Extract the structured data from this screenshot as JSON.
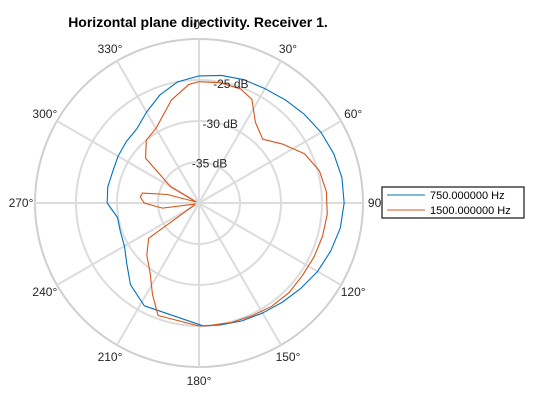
{
  "chart_data": {
    "type": "polar-line",
    "title": "Horizontal plane directivity. Receiver 1.",
    "theta_zero": "top",
    "theta_direction": "clockwise",
    "theta_ticks": [
      {
        "angle": 0,
        "label": "0°"
      },
      {
        "angle": 30,
        "label": "30°"
      },
      {
        "angle": 60,
        "label": "60°"
      },
      {
        "angle": 90,
        "label": "90°"
      },
      {
        "angle": 120,
        "label": "120°"
      },
      {
        "angle": 150,
        "label": "150°"
      },
      {
        "angle": 180,
        "label": "180°"
      },
      {
        "angle": 210,
        "label": "210°"
      },
      {
        "angle": 240,
        "label": "240°"
      },
      {
        "angle": 270,
        "label": "270°"
      },
      {
        "angle": 300,
        "label": "300°"
      },
      {
        "angle": 330,
        "label": "330°"
      }
    ],
    "r_range": [
      -40,
      -20
    ],
    "r_ticks": [
      {
        "value": -25,
        "label": "-25 dB"
      },
      {
        "value": -30,
        "label": "-30 dB"
      },
      {
        "value": -35,
        "label": "-35 dB"
      }
    ],
    "grid": true,
    "legend_position": "right",
    "series": [
      {
        "name": "750.000000 Hz",
        "color": "#0072BD",
        "theta": [
          0,
          10,
          20,
          30,
          40,
          50,
          60,
          70,
          80,
          90,
          100,
          110,
          120,
          130,
          140,
          150,
          160,
          170,
          178,
          208,
          220,
          230,
          240,
          250,
          260,
          270,
          280,
          290,
          300,
          310,
          320,
          330,
          340,
          350,
          360
        ],
        "r": [
          -24.5,
          -24.2,
          -24.0,
          -23.9,
          -23.6,
          -23.2,
          -22.8,
          -22.5,
          -22.3,
          -22.3,
          -22.5,
          -22.9,
          -23.3,
          -23.8,
          -24.2,
          -24.5,
          -24.7,
          -24.9,
          -25.0,
          -25.8,
          -27.0,
          -28.5,
          -29.5,
          -29.8,
          -29.9,
          -28.8,
          -28.7,
          -28.8,
          -28.6,
          -28.4,
          -28.2,
          -27.2,
          -26.0,
          -25.0,
          -24.5
        ]
      },
      {
        "name": "1500.000000 Hz",
        "color": "#D95319",
        "theta": [
          0,
          10,
          20,
          27,
          35,
          45,
          55,
          65,
          75,
          85,
          95,
          105,
          115,
          125,
          135,
          145,
          155,
          165,
          175,
          180,
          200,
          207,
          215,
          225,
          235,
          245,
          255,
          262,
          270,
          276,
          280,
          285,
          290,
          300,
          310,
          320,
          330,
          345,
          355,
          360
        ],
        "r": [
          -25.2,
          -25.1,
          -25.2,
          -25.8,
          -28.0,
          -29.0,
          -27.5,
          -25.8,
          -24.8,
          -24.4,
          -24.3,
          -24.4,
          -24.5,
          -24.6,
          -24.5,
          -24.6,
          -24.8,
          -24.9,
          -25.0,
          -25.0,
          -25.4,
          -27.5,
          -29.6,
          -31.0,
          -32.5,
          -39.3,
          -39.5,
          -35.5,
          -33.3,
          -32.8,
          -33.0,
          -36.0,
          -39.6,
          -36.0,
          -31.5,
          -30.0,
          -29.5,
          -27.0,
          -25.5,
          -25.2
        ]
      }
    ]
  }
}
